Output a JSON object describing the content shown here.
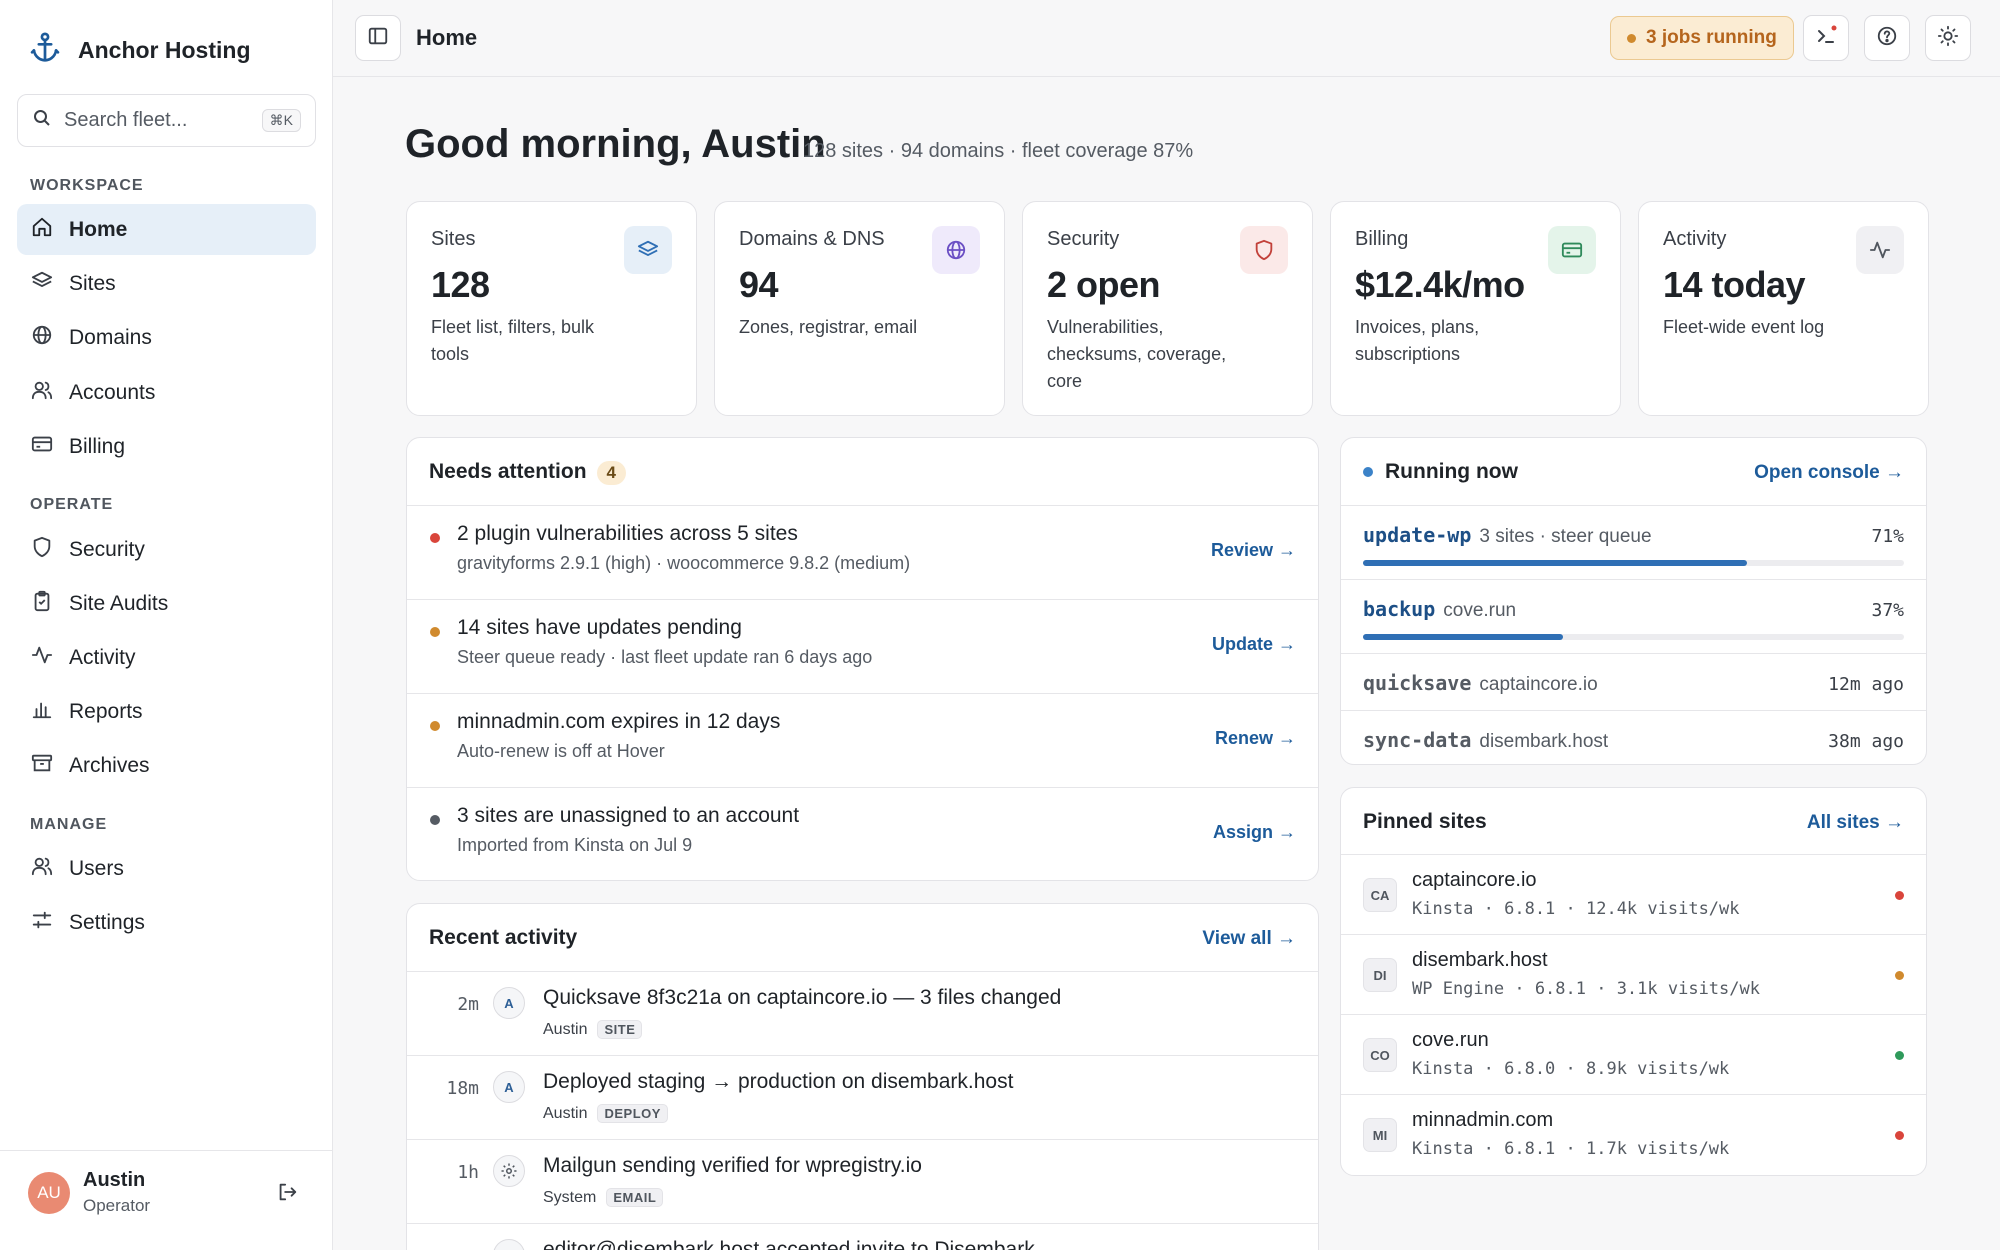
{
  "brand": {
    "name": "Anchor Hosting"
  },
  "search": {
    "placeholder": "Search fleet...",
    "shortcut": "⌘K"
  },
  "sidebar": {
    "sections": {
      "workspace": "WORKSPACE",
      "operate": "OPERATE",
      "manage": "MANAGE"
    },
    "items": [
      {
        "label": "Home",
        "icon": "home-icon",
        "active": true
      },
      {
        "label": "Sites",
        "icon": "layers-icon"
      },
      {
        "label": "Domains",
        "icon": "globe-icon"
      },
      {
        "label": "Accounts",
        "icon": "users-icon"
      },
      {
        "label": "Billing",
        "icon": "credit-card-icon"
      },
      {
        "label": "Security",
        "icon": "shield-icon"
      },
      {
        "label": "Site Audits",
        "icon": "clipboard-icon"
      },
      {
        "label": "Activity",
        "icon": "activity-icon"
      },
      {
        "label": "Reports",
        "icon": "bar-chart-icon"
      },
      {
        "label": "Archives",
        "icon": "archive-icon"
      },
      {
        "label": "Users",
        "icon": "users-icon"
      },
      {
        "label": "Settings",
        "icon": "sliders-icon"
      }
    ],
    "user": {
      "initials": "AU",
      "name": "Austin",
      "role": "Operator"
    }
  },
  "topbar": {
    "title": "Home",
    "jobs_label": "3 jobs running"
  },
  "greeting": {
    "title": "Good morning, Austin",
    "subtitle": "128 sites · 94 domains · fleet coverage 87%"
  },
  "cards": [
    {
      "label": "Sites",
      "value": "128",
      "desc": "Fleet list, filters, bulk tools",
      "icon": "layers-icon",
      "color": "#2f6fb5",
      "bg": "#e6eff8"
    },
    {
      "label": "Domains & DNS",
      "value": "94",
      "desc": "Zones, registrar, email",
      "icon": "globe-icon",
      "color": "#6b4fc4",
      "bg": "#efeafb"
    },
    {
      "label": "Security",
      "value": "2 open",
      "desc": "Vulnerabilities, checksums, coverage, core",
      "icon": "shield-icon",
      "color": "#c2413a",
      "bg": "#fbe9e8"
    },
    {
      "label": "Billing",
      "value": "$12.4k/mo",
      "desc": "Invoices, plans, subscriptions",
      "icon": "credit-card-icon",
      "color": "#2f8a5b",
      "bg": "#e4f4ea"
    },
    {
      "label": "Activity",
      "value": "14 today",
      "desc": "Fleet-wide event log",
      "icon": "activity-icon",
      "color": "#50565e",
      "bg": "#f0f0f3"
    }
  ],
  "attention": {
    "title": "Needs attention",
    "count": "4",
    "items": [
      {
        "title": "2 plugin vulnerabilities across 5 sites",
        "sub": "gravityforms 2.9.1 (high) · woocommerce 9.8.2 (medium)",
        "action": "Review →",
        "color": "#d9453b"
      },
      {
        "title": "14 sites have updates pending",
        "sub": "Steer queue ready · last fleet update ran 6 days ago",
        "action": "Update →",
        "color": "#d08a2e"
      },
      {
        "title": "minnadmin.com expires in 12 days",
        "sub": "Auto-renew is off at Hover",
        "action": "Renew →",
        "color": "#d08a2e"
      },
      {
        "title": "3 sites are unassigned to an account",
        "sub": "Imported from Kinsta on Jul 9",
        "action": "Assign →",
        "color": "#555b63"
      }
    ]
  },
  "activity": {
    "title": "Recent activity",
    "link": "View all →",
    "items": [
      {
        "time": "2m",
        "avatar": "A",
        "title": "Quicksave 8f3c21a on captaincore.io — 3 files changed",
        "who": "Austin",
        "tag": "SITE"
      },
      {
        "time": "18m",
        "avatar": "A",
        "title": "Deployed staging → production on disembark.host",
        "who": "Austin",
        "tag": "DEPLOY"
      },
      {
        "time": "1h",
        "avatar": "gear",
        "title": "Mailgun sending verified for wpregistry.io",
        "who": "System",
        "tag": "EMAIL"
      },
      {
        "time": "",
        "avatar": "A",
        "title": "editor@disembark.host accepted invite to Disembark",
        "who": "",
        "tag": ""
      }
    ]
  },
  "running": {
    "title": "Running now",
    "link": "Open console →",
    "jobs": [
      {
        "cmd": "update-wp",
        "ctx": "3 sites · steer queue",
        "value": "71%",
        "progress": 0.71
      },
      {
        "cmd": "backup",
        "ctx": "cove.run",
        "value": "37%",
        "progress": 0.37
      },
      {
        "cmd": "quicksave",
        "ctx": "captaincore.io",
        "value": "12m ago"
      },
      {
        "cmd": "sync-data",
        "ctx": "disembark.host",
        "value": "38m ago"
      }
    ]
  },
  "pinned": {
    "title": "Pinned sites",
    "link": "All sites →",
    "sites": [
      {
        "badge": "CA",
        "name": "captaincore.io",
        "meta": "Kinsta · 6.8.1 · 12.4k visits/wk",
        "color": "#d9453b"
      },
      {
        "badge": "DI",
        "name": "disembark.host",
        "meta": "WP Engine · 6.8.1 · 3.1k visits/wk",
        "color": "#d08a2e"
      },
      {
        "badge": "CO",
        "name": "cove.run",
        "meta": "Kinsta · 6.8.0 · 8.9k visits/wk",
        "color": "#2f9a5b"
      },
      {
        "badge": "MI",
        "name": "minnadmin.com",
        "meta": "Kinsta · 6.8.1 · 1.7k visits/wk",
        "color": "#d9453b"
      }
    ]
  }
}
